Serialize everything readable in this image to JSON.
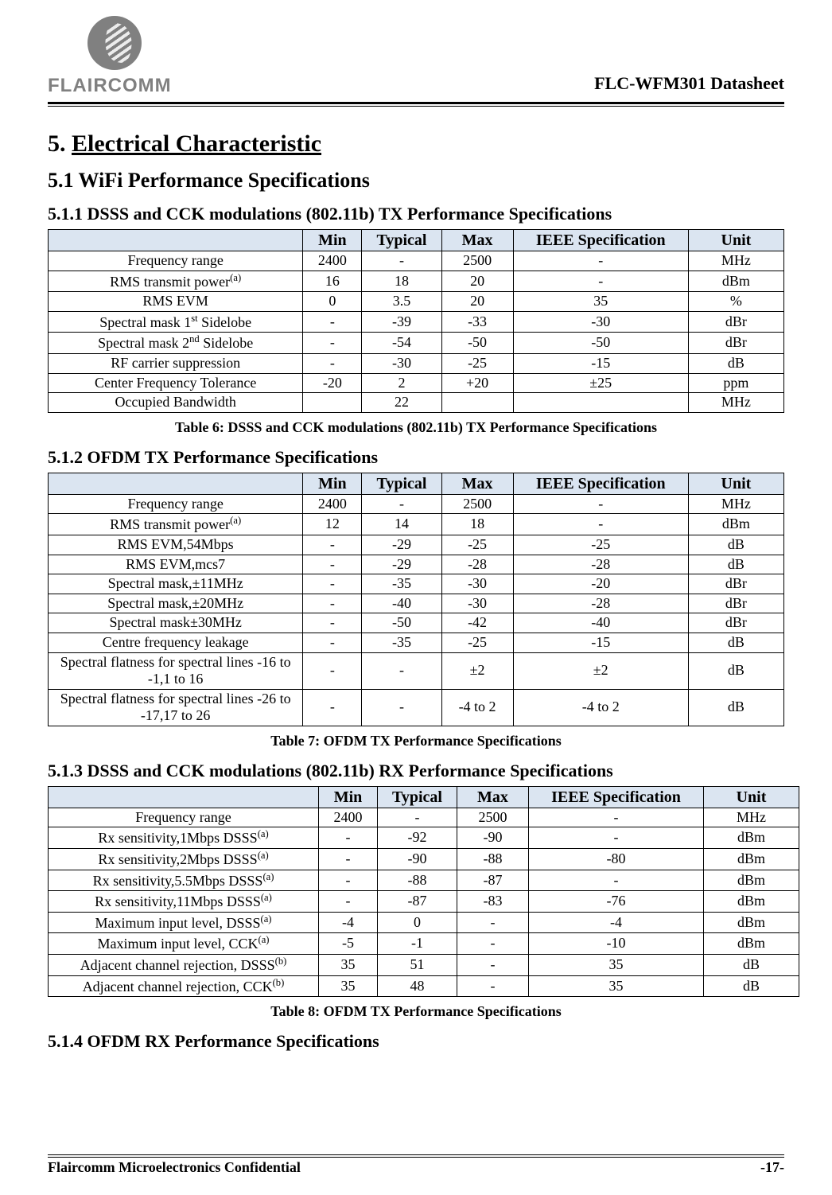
{
  "header": {
    "logo_text": "FLAIRCOMM",
    "doc_title": "FLC-WFM301 Datasheet"
  },
  "section": {
    "h1_num": "5.",
    "h1_title": "Electrical Characteristic",
    "h2_num": "5.1",
    "h2_title": "WiFi Performance Specifications",
    "h3_1_num": "5.1.1",
    "h3_1_title": "DSSS and CCK modulations (802.11b) TX Performance Specifications",
    "caption1": "Table 6: DSSS and CCK modulations (802.11b) TX Performance Specifications",
    "h3_2_num": "5.1.2",
    "h3_2_title": "OFDM TX Performance Specifications",
    "caption2": "Table 7: OFDM TX Performance Specifications",
    "h3_3_num": "5.1.3",
    "h3_3_title": "DSSS and CCK modulations (802.11b) RX Performance Specifications",
    "caption3": "Table 8: OFDM TX Performance Specifications",
    "h3_4_num": "5.1.4",
    "h3_4_title": "OFDM RX Performance Specifications"
  },
  "table_style": {
    "header_bg": "#dbe5f1",
    "border_color": "#000000",
    "font": "Times New Roman",
    "header_fontsize_pt": 15,
    "body_fontsize_pt": 13
  },
  "columns": [
    "",
    "Min",
    "Typical",
    "Max",
    "IEEE Specification",
    "Unit"
  ],
  "columns2": [
    "",
    "Min",
    "Typical",
    "Max",
    "IEEE  Specification",
    "Unit"
  ],
  "table1": [
    {
      "p": "Frequency range",
      "sup": "",
      "min": "2400",
      "typ": "-",
      "max": "2500",
      "ieee": "-",
      "unit": "MHz"
    },
    {
      "p": "RMS transmit power",
      "sup": "(a)",
      "min": "16",
      "typ": "18",
      "max": "20",
      "ieee": "-",
      "unit": "dBm"
    },
    {
      "p": "RMS EVM",
      "sup": "",
      "min": "0",
      "typ": "3.5",
      "max": "20",
      "ieee": "35",
      "unit": "%"
    },
    {
      "p": "Spectral mask 1",
      "ord": "st",
      "after": " Sidelobe",
      "min": "-",
      "typ": "-39",
      "max": "-33",
      "ieee": "-30",
      "unit": "dBr"
    },
    {
      "p": "Spectral mask 2",
      "ord": "nd",
      "after": " Sidelobe",
      "min": "-",
      "typ": "-54",
      "max": "-50",
      "ieee": "-50",
      "unit": "dBr"
    },
    {
      "p": "RF carrier suppression",
      "sup": "",
      "min": "-",
      "typ": "-30",
      "max": "-25",
      "ieee": "-15",
      "unit": "dB"
    },
    {
      "p": "Center Frequency Tolerance",
      "sup": "",
      "min": "-20",
      "typ": "2",
      "max": "+20",
      "ieee": "±25",
      "unit": "ppm"
    },
    {
      "p": "Occupied Bandwidth",
      "sup": "",
      "min": "",
      "typ": "22",
      "max": "",
      "ieee": "",
      "unit": "MHz"
    }
  ],
  "table2": [
    {
      "p": "Frequency range",
      "sup": "",
      "min": "2400",
      "typ": "-",
      "max": "2500",
      "ieee": "-",
      "unit": "MHz"
    },
    {
      "p": "RMS transmit power",
      "sup": "(a)",
      "min": "12",
      "typ": "14",
      "max": "18",
      "ieee": "-",
      "unit": "dBm"
    },
    {
      "p": "RMS EVM,54Mbps",
      "sup": "",
      "min": "-",
      "typ": "-29",
      "max": "-25",
      "ieee": "-25",
      "unit": "dB"
    },
    {
      "p": "RMS EVM,mcs7",
      "sup": "",
      "min": "-",
      "typ": "-29",
      "max": "-28",
      "ieee": "-28",
      "unit": "dB"
    },
    {
      "p": "Spectral mask,±11MHz",
      "sup": "",
      "min": "-",
      "typ": "-35",
      "max": "-30",
      "ieee": "-20",
      "unit": "dBr"
    },
    {
      "p": "Spectral mask,±20MHz",
      "sup": "",
      "min": "-",
      "typ": "-40",
      "max": "-30",
      "ieee": "-28",
      "unit": "dBr"
    },
    {
      "p": "Spectral mask±30MHz",
      "sup": "",
      "min": "-",
      "typ": "-50",
      "max": "-42",
      "ieee": "-40",
      "unit": "dBr"
    },
    {
      "p": "Centre frequency leakage",
      "sup": "",
      "min": "-",
      "typ": "-35",
      "max": "-25",
      "ieee": "-15",
      "unit": "dB"
    },
    {
      "p": "Spectral flatness for spectral lines -16 to -1,1 to 16",
      "sup": "",
      "min": "-",
      "typ": "-",
      "max": "±2",
      "ieee": "±2",
      "unit": "dB"
    },
    {
      "p": "Spectral flatness for spectral lines -26 to -17,17 to 26",
      "sup": "",
      "min": "-",
      "typ": "-",
      "max": "-4 to 2",
      "ieee": "-4 to 2",
      "unit": "dB"
    }
  ],
  "table3": [
    {
      "p": "Frequency range",
      "sup": "",
      "min": "2400",
      "typ": "-",
      "max": "2500",
      "ieee": "-",
      "unit": "MHz"
    },
    {
      "p": "Rx sensitivity,1Mbps DSSS",
      "sup": "(a)",
      "min": "-",
      "typ": "-92",
      "max": "-90",
      "ieee": "-",
      "unit": "dBm"
    },
    {
      "p": "Rx sensitivity,2Mbps DSSS",
      "sup": "(a)",
      "min": "-",
      "typ": "-90",
      "max": "-88",
      "ieee": "-80",
      "unit": "dBm"
    },
    {
      "p": "Rx sensitivity,5.5Mbps DSSS",
      "sup": "(a)",
      "min": "-",
      "typ": "-88",
      "max": "-87",
      "ieee": "-",
      "unit": "dBm"
    },
    {
      "p": "Rx sensitivity,11Mbps DSSS",
      "sup": "(a)",
      "min": "-",
      "typ": "-87",
      "max": "-83",
      "ieee": "-76",
      "unit": "dBm"
    },
    {
      "p": "Maximum input level, DSSS",
      "sup": "(a)",
      "min": "-4",
      "typ": "0",
      "max": "-",
      "ieee": "-4",
      "unit": "dBm"
    },
    {
      "p": "Maximum input level, CCK",
      "sup": "(a)",
      "min": "-5",
      "typ": "-1",
      "max": "-",
      "ieee": "-10",
      "unit": "dBm"
    },
    {
      "p": "Adjacent channel rejection, DSSS",
      "sup": "(b)",
      "min": "35",
      "typ": "51",
      "max": "-",
      "ieee": "35",
      "unit": "dB"
    },
    {
      "p": "Adjacent channel rejection, CCK",
      "sup": "(b)",
      "min": "35",
      "typ": "48",
      "max": "-",
      "ieee": "35",
      "unit": "dB"
    }
  ],
  "footer": {
    "left": "Flaircomm Microelectronics Confidential",
    "right": "-17-"
  }
}
